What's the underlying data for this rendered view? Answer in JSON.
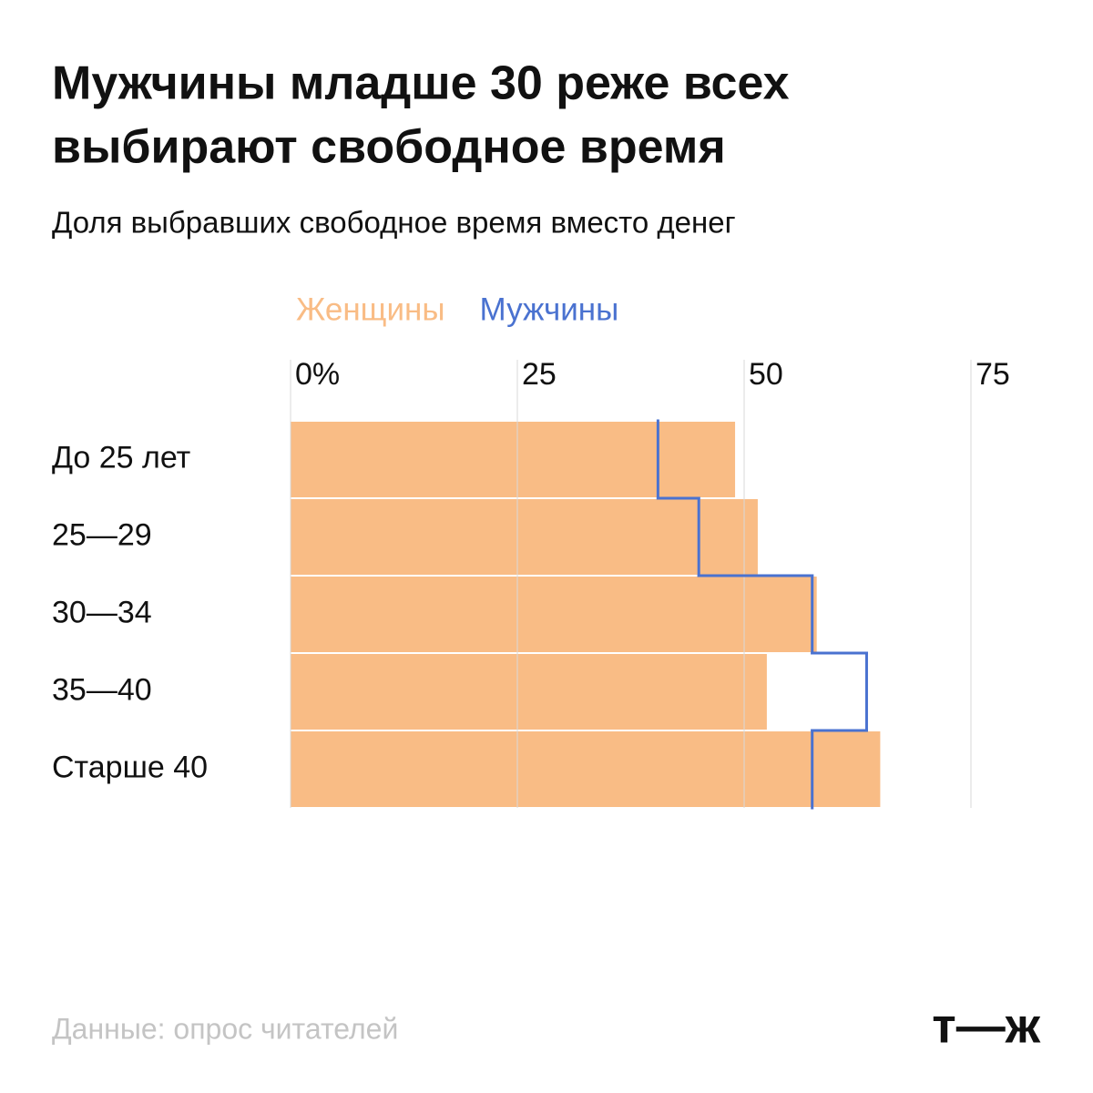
{
  "chart_data": {
    "type": "bar",
    "title": [
      "Мужчины младше 30 реже всех",
      "выбирают свободное время"
    ],
    "subtitle": "Доля выбравших свободное время вместо денег",
    "categories": [
      "До 25 лет",
      "25—29",
      "30—34",
      "35—40",
      "Старше 40"
    ],
    "series": [
      {
        "name": "Женщины",
        "color": "#f9bc85",
        "values": [
          49,
          51.5,
          58,
          52.5,
          65
        ]
      },
      {
        "name": "Мужчины",
        "color": "#4a72d0",
        "values": [
          40.5,
          45,
          57.5,
          63.5,
          57.5
        ]
      }
    ],
    "xlim": [
      0,
      75
    ],
    "xticks": [
      {
        "value": 0,
        "label": "0%"
      },
      25,
      50,
      75
    ],
    "grid": true,
    "source": "Данные: опрос читателей",
    "logo": "т—ж"
  }
}
